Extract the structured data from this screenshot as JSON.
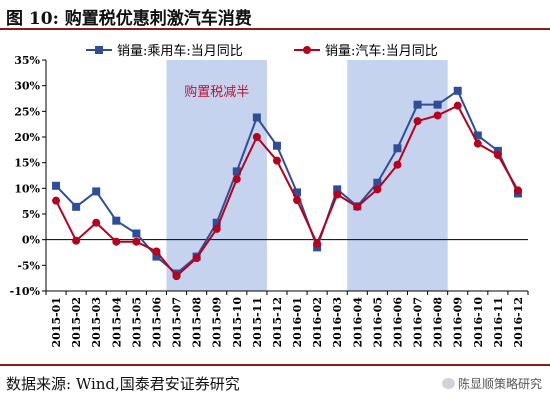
{
  "figure": {
    "title": "图 10:  购置税优惠刺激汽车消费",
    "source": "数据来源:  Wind,国泰君安证券研究",
    "watermark": "陈显顺策略研究"
  },
  "chart_data": {
    "type": "line",
    "categories": [
      "2015-01",
      "2015-02",
      "2015-03",
      "2015-04",
      "2015-05",
      "2015-06",
      "2015-07",
      "2015-08",
      "2015-09",
      "2015-10",
      "2015-11",
      "2015-12",
      "2016-01",
      "2016-02",
      "2016-03",
      "2016-04",
      "2016-05",
      "2016-06",
      "2016-07",
      "2016-08",
      "2016-09",
      "2016-10",
      "2016-11",
      "2016-12"
    ],
    "series": [
      {
        "name": "销量:乘用车:当月同比",
        "color": "#2e4e9a",
        "marker": "square",
        "values": [
          10.5,
          6.4,
          9.4,
          3.7,
          1.2,
          -3.3,
          -6.6,
          -3.3,
          3.3,
          13.3,
          23.8,
          18.3,
          9.2,
          -1.5,
          9.8,
          6.5,
          11.1,
          17.8,
          26.3,
          26.3,
          29.0,
          20.3,
          17.3,
          9.0
        ]
      },
      {
        "name": "销量:汽车:当月同比",
        "color": "#b8001c",
        "marker": "circle",
        "values": [
          7.6,
          -0.2,
          3.3,
          -0.4,
          -0.4,
          -2.3,
          -7.1,
          -3.6,
          2.1,
          11.8,
          20.0,
          15.4,
          7.7,
          -0.8,
          8.8,
          6.4,
          9.8,
          14.6,
          23.1,
          24.2,
          26.1,
          18.7,
          16.5,
          9.6
        ]
      }
    ],
    "highlights": [
      {
        "from": "2015-07",
        "to": "2015-11",
        "color": "#c5d3ee"
      },
      {
        "from": "2016-04",
        "to": "2016-08",
        "color": "#c5d3ee"
      }
    ],
    "annotation": {
      "text": "购置税减半",
      "at": "2015-09",
      "y": 29,
      "color": "#c0122f"
    },
    "ylim": [
      -10,
      35
    ],
    "yticks": [
      -10,
      -5,
      0,
      5,
      10,
      15,
      20,
      25,
      30,
      35
    ],
    "y_tick_format": "percent",
    "legend": "top"
  }
}
